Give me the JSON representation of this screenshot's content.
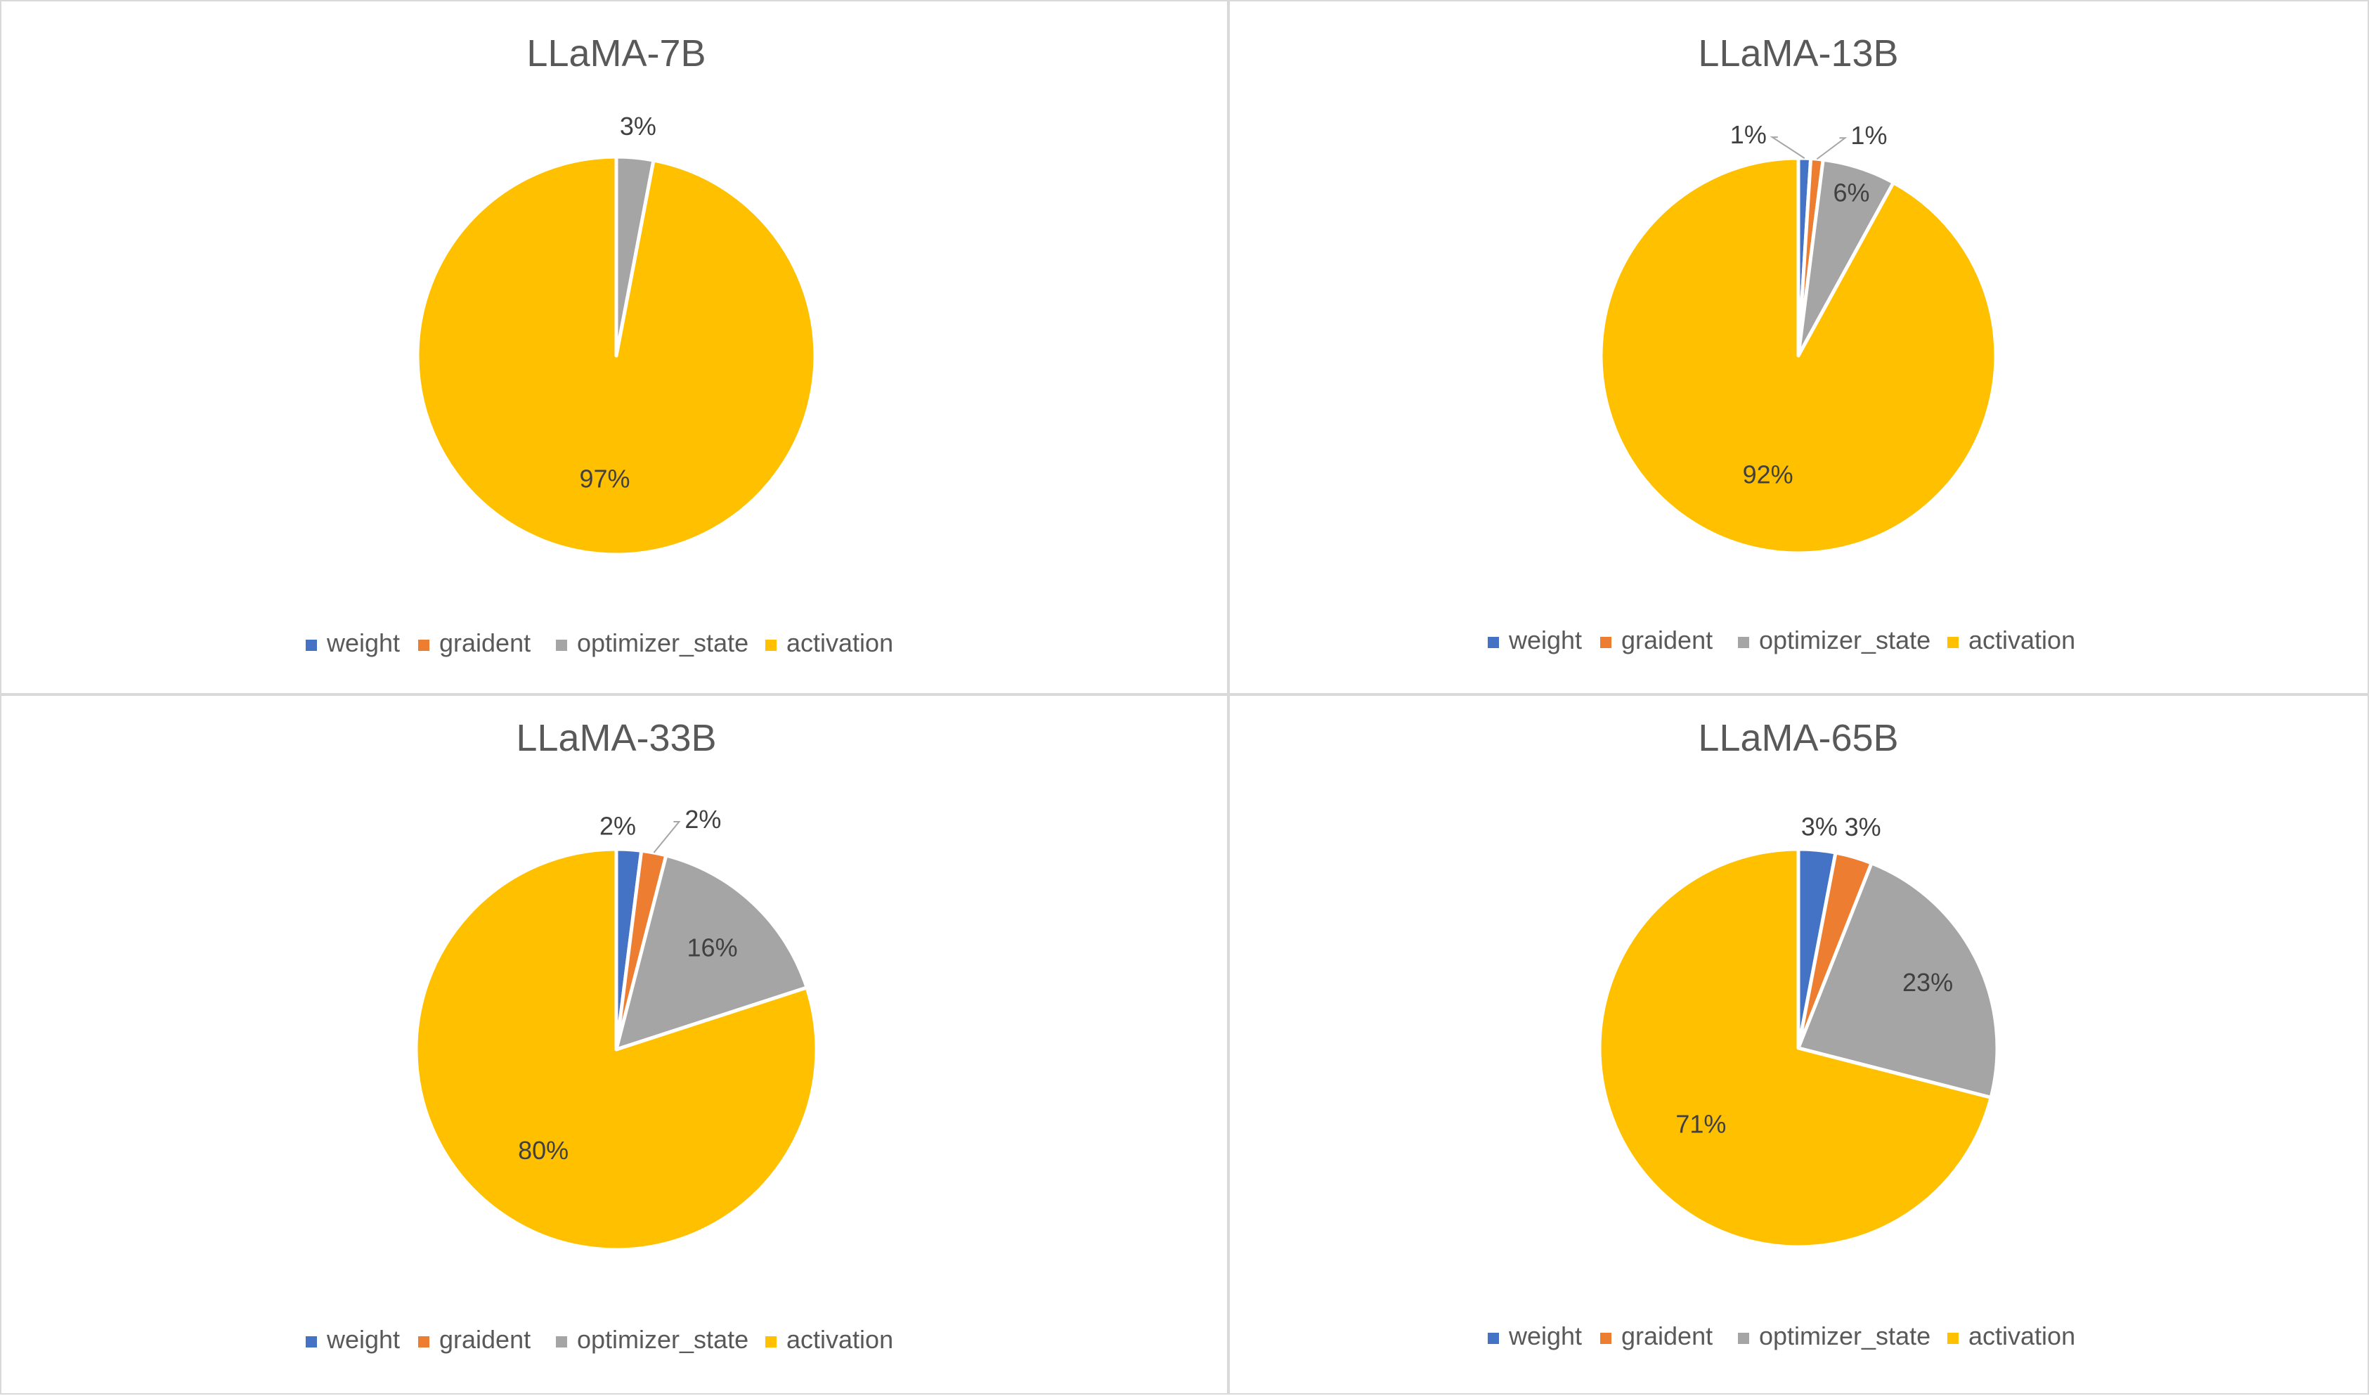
{
  "colors": {
    "weight": "#4472C4",
    "graident": "#ED7D31",
    "optimizer_state": "#A5A5A5",
    "activation": "#FFC000"
  },
  "chart_data": [
    {
      "type": "pie",
      "title": "LLaMA-7B",
      "categories": [
        "weight",
        "graident",
        "optimizer_state",
        "activation"
      ],
      "values": [
        0,
        0,
        3,
        97
      ],
      "data_labels": [
        "",
        "",
        "3%",
        "97%"
      ],
      "legend": [
        "weight",
        "graident",
        "optimizer_state",
        "activation"
      ],
      "legend_position": "bottom"
    },
    {
      "type": "pie",
      "title": "LLaMA-13B",
      "categories": [
        "weight",
        "graident",
        "optimizer_state",
        "activation"
      ],
      "values": [
        1,
        1,
        6,
        92
      ],
      "data_labels": [
        "1%",
        "1%",
        "6%",
        "92%"
      ],
      "legend": [
        "weight",
        "graident",
        "optimizer_state",
        "activation"
      ],
      "legend_position": "bottom"
    },
    {
      "type": "pie",
      "title": "LLaMA-33B",
      "categories": [
        "weight",
        "graident",
        "optimizer_state",
        "activation"
      ],
      "values": [
        2,
        2,
        16,
        80
      ],
      "data_labels": [
        "2%",
        "2%",
        "16%",
        "80%"
      ],
      "legend": [
        "weight",
        "graident",
        "optimizer_state",
        "activation"
      ],
      "legend_position": "bottom"
    },
    {
      "type": "pie",
      "title": "LLaMA-65B",
      "categories": [
        "weight",
        "graident",
        "optimizer_state",
        "activation"
      ],
      "values": [
        3,
        3,
        23,
        71
      ],
      "data_labels": [
        "3%",
        "3%",
        "23%",
        "71%"
      ],
      "legend": [
        "weight",
        "graident",
        "optimizer_state",
        "activation"
      ],
      "legend_position": "bottom"
    }
  ]
}
